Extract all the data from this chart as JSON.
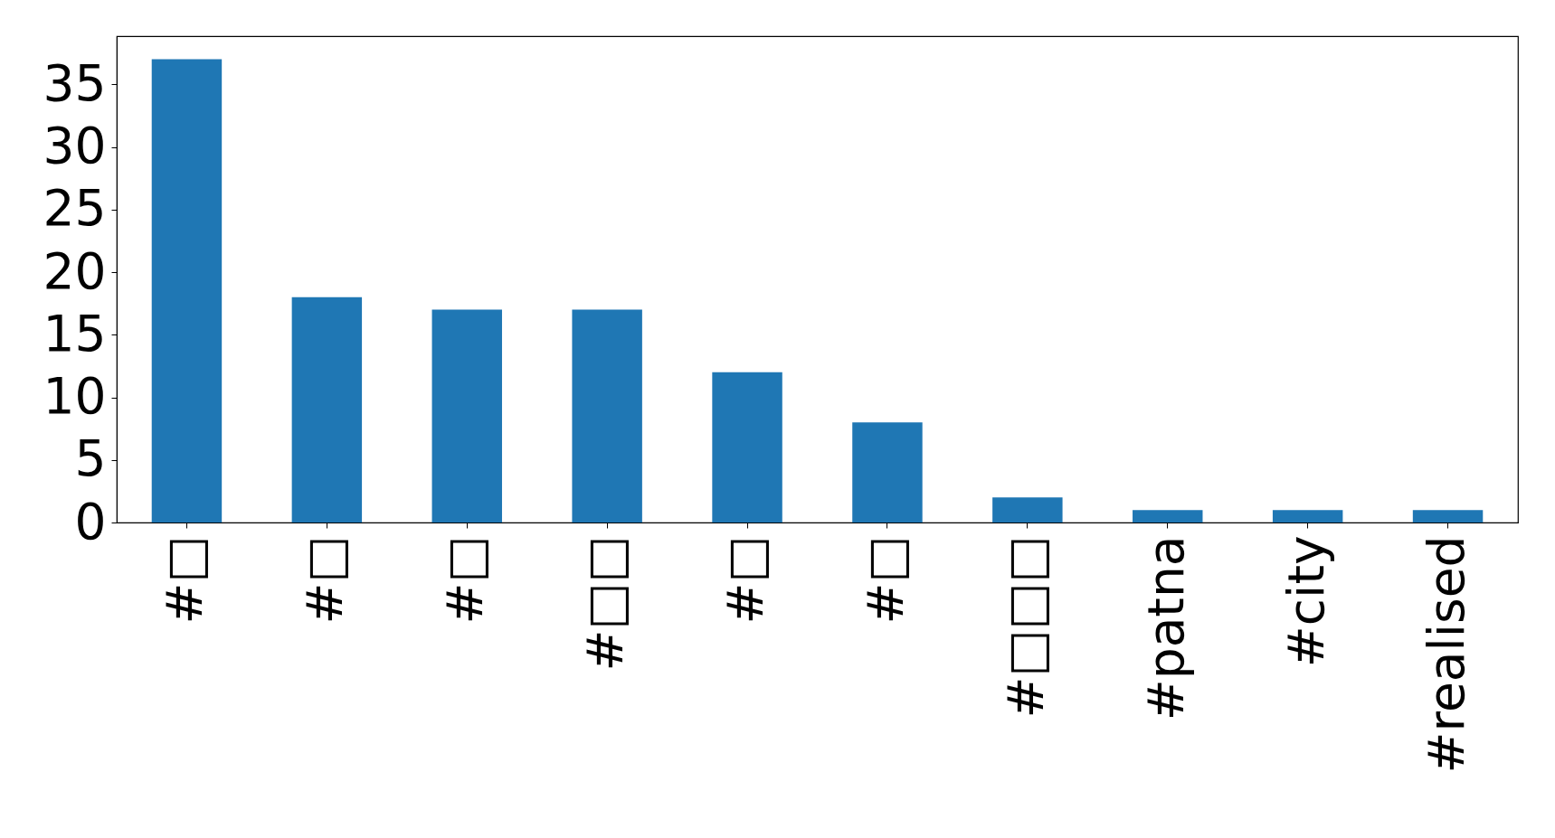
{
  "chart_data": {
    "type": "bar",
    "categories": [
      "#□",
      "#□",
      "#□",
      "#□□",
      "#□",
      "#□",
      "#□□□",
      "#patna",
      "#city",
      "#realised"
    ],
    "values": [
      37,
      18,
      17,
      17,
      12,
      8,
      2,
      1,
      1,
      1
    ],
    "color": "#1f77b4",
    "ylim": [
      0,
      38.85
    ],
    "yticks": [
      0,
      5,
      10,
      15,
      20,
      25,
      30,
      35
    ],
    "grid": false
  }
}
